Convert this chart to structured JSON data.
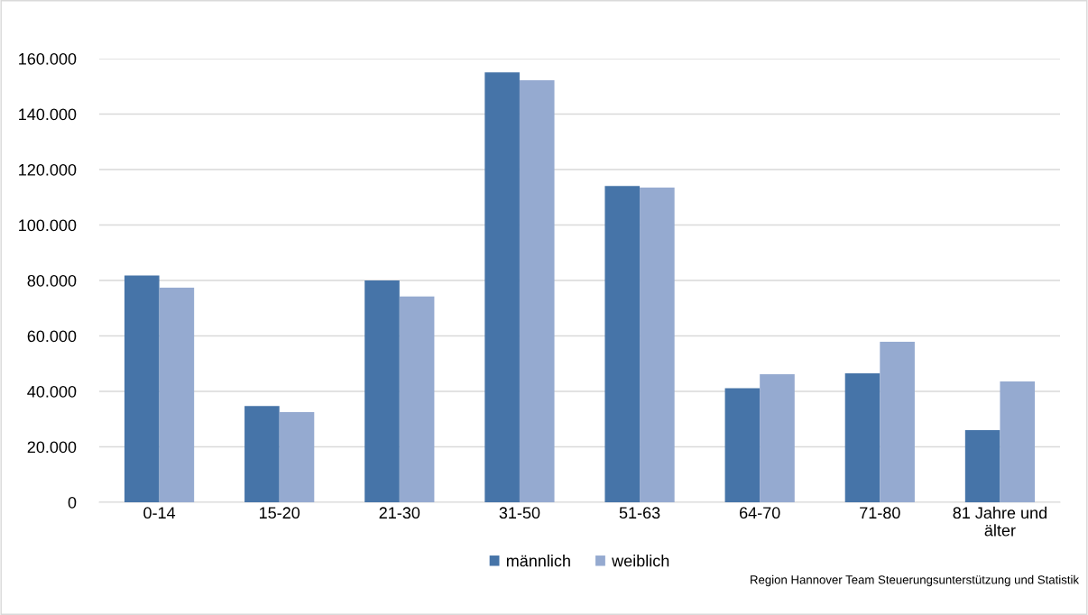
{
  "chart_data": {
    "type": "bar",
    "categories": [
      "0-14",
      "15-20",
      "21-30",
      "31-50",
      "51-63",
      "64-70",
      "71-80",
      "81 Jahre und\nälter"
    ],
    "series": [
      {
        "name": "männlich",
        "color": "#4674a8",
        "values": [
          81800,
          34700,
          80000,
          155000,
          114100,
          41100,
          46500,
          26000
        ]
      },
      {
        "name": "weiblich",
        "color": "#95aad0",
        "values": [
          77400,
          32500,
          74200,
          152200,
          113500,
          46200,
          57900,
          43600
        ]
      }
    ],
    "ylim": [
      0,
      160000
    ],
    "yticks": [
      {
        "value": 0,
        "label": "0"
      },
      {
        "value": 20000,
        "label": "20.000"
      },
      {
        "value": 40000,
        "label": "40.000"
      },
      {
        "value": 60000,
        "label": "60.000"
      },
      {
        "value": 80000,
        "label": "80.000"
      },
      {
        "value": 100000,
        "label": "100.000"
      },
      {
        "value": 120000,
        "label": "120.000"
      },
      {
        "value": 140000,
        "label": "140.000"
      },
      {
        "value": 160000,
        "label": "160.000"
      }
    ],
    "grid": "y",
    "legend": "bottom",
    "annotations": [
      "Region Hannover Team Steuerungsunterstützung und Statistik"
    ]
  }
}
